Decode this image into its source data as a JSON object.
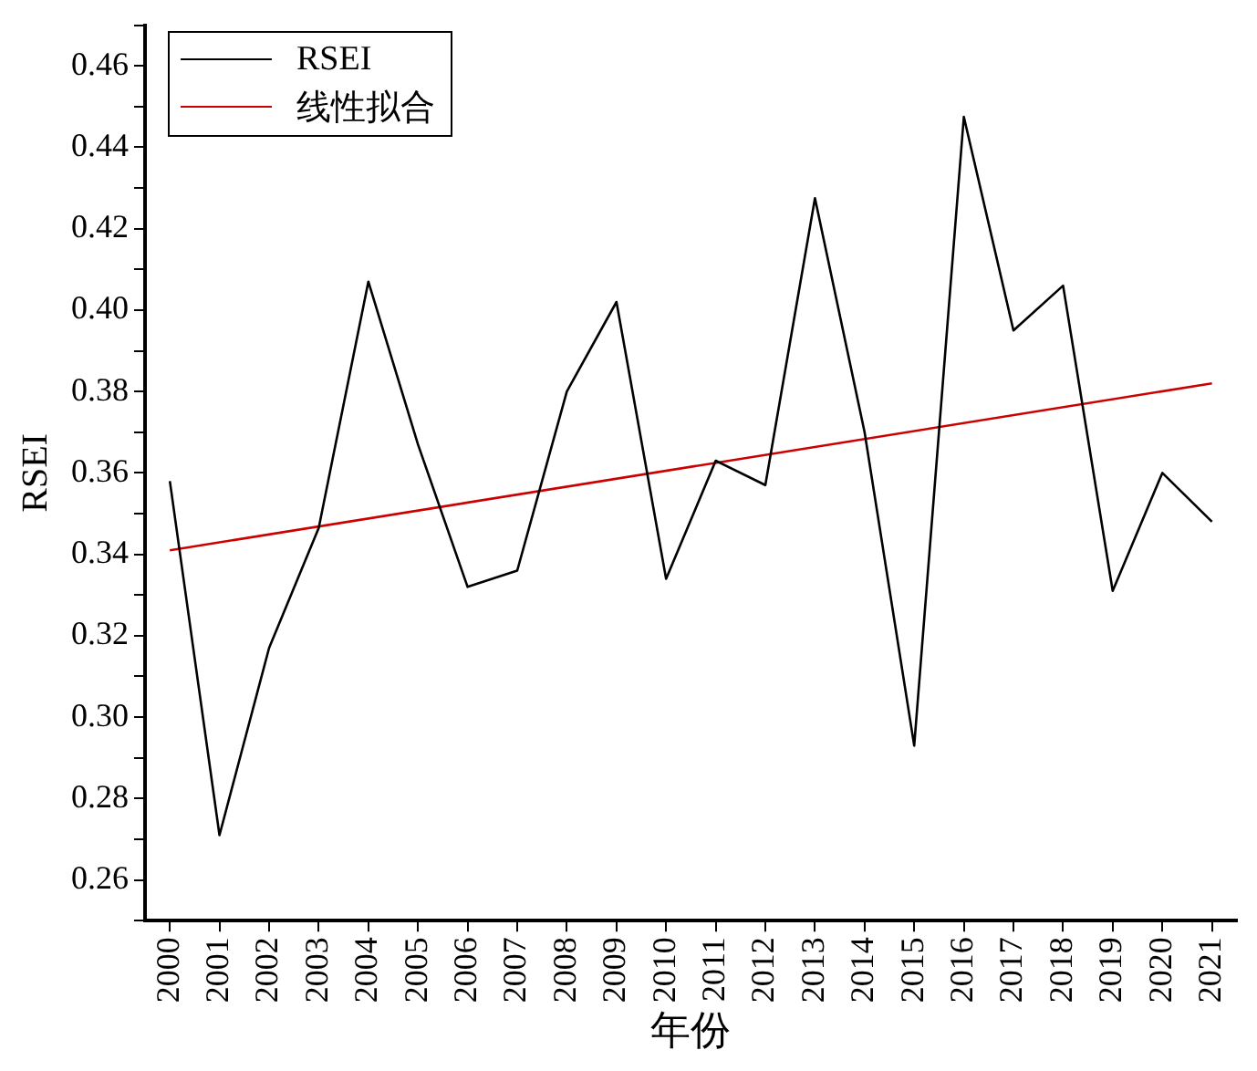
{
  "chart_data": {
    "type": "line",
    "xlabel": "年份",
    "ylabel": "RSEI",
    "categories": [
      "2000",
      "2001",
      "2002",
      "2003",
      "2004",
      "2005",
      "2006",
      "2007",
      "2008",
      "2009",
      "2010",
      "2011",
      "2012",
      "2013",
      "2014",
      "2015",
      "2016",
      "2017",
      "2018",
      "2019",
      "2020",
      "2021"
    ],
    "series": [
      {
        "name": "RSEI",
        "color": "#000000",
        "values": [
          0.358,
          0.271,
          0.317,
          0.3465,
          0.407,
          0.367,
          0.332,
          0.336,
          0.38,
          0.402,
          0.334,
          0.363,
          0.357,
          0.4275,
          0.37,
          0.293,
          0.4475,
          0.395,
          0.406,
          0.331,
          0.36,
          0.348
        ]
      },
      {
        "name": "线性拟合",
        "color": "#cc0000",
        "values": [
          0.341,
          null,
          null,
          null,
          null,
          null,
          null,
          null,
          null,
          null,
          null,
          null,
          null,
          null,
          null,
          null,
          null,
          null,
          null,
          null,
          null,
          0.382
        ]
      }
    ],
    "ylim": [
      0.25,
      0.47
    ],
    "yticks": [
      {
        "value": 0.25,
        "label": null
      },
      0.26,
      {
        "value": 0.27,
        "label": null
      },
      0.28,
      {
        "value": 0.29,
        "label": null
      },
      {
        "value": 0.3,
        "label": "0.30"
      },
      {
        "value": 0.31,
        "label": null
      },
      0.32,
      {
        "value": 0.33,
        "label": null
      },
      0.34,
      {
        "value": 0.35,
        "label": null
      },
      0.36,
      {
        "value": 0.37,
        "label": null
      },
      0.38,
      {
        "value": 0.39,
        "label": null
      },
      {
        "value": 0.4,
        "label": "0.40"
      },
      {
        "value": 0.41,
        "label": null
      },
      0.42,
      {
        "value": 0.43,
        "label": null
      },
      0.44,
      {
        "value": 0.45,
        "label": null
      },
      0.46,
      {
        "value": 0.47,
        "label": null
      }
    ],
    "grid": false,
    "legend": "top left",
    "marker": "none",
    "line_style": "solid"
  }
}
